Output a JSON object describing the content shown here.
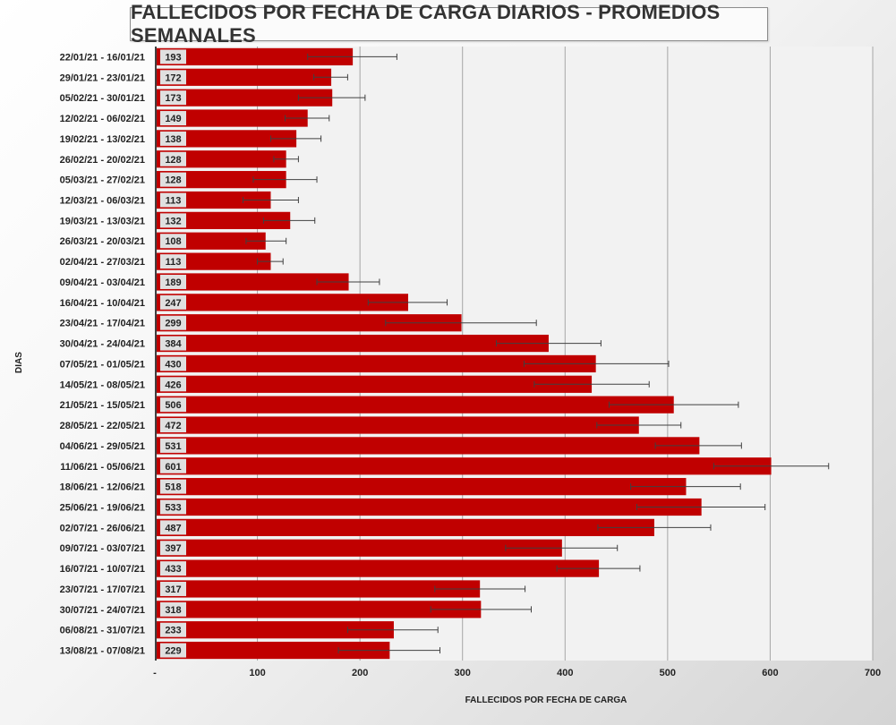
{
  "chart_data": {
    "type": "bar",
    "orientation": "horizontal",
    "title": "FALLECIDOS POR FECHA DE CARGA DIARIOS - PROMEDIOS SEMANALES",
    "xlabel": "FALLECIDOS POR FECHA DE CARGA",
    "ylabel": "DIAS",
    "xlim": [
      0,
      700
    ],
    "x_ticks": [
      "-",
      "100",
      "200",
      "300",
      "400",
      "500",
      "600",
      "700"
    ],
    "grid": "vertical",
    "bar_color": "#C00000",
    "categories": [
      "22/01/21 - 16/01/21",
      "29/01/21 - 23/01/21",
      "05/02/21 - 30/01/21",
      "12/02/21 - 06/02/21",
      "19/02/21 - 13/02/21",
      "26/02/21 - 20/02/21",
      "05/03/21 - 27/02/21",
      "12/03/21 - 06/03/21",
      "19/03/21 - 13/03/21",
      "26/03/21 - 20/03/21",
      "02/04/21 - 27/03/21",
      "09/04/21 - 03/04/21",
      "16/04/21 - 10/04/21",
      "23/04/21 - 17/04/21",
      "30/04/21 - 24/04/21",
      "07/05/21 - 01/05/21",
      "14/05/21 - 08/05/21",
      "21/05/21 - 15/05/21",
      "28/05/21 - 22/05/21",
      "04/06/21 - 29/05/21",
      "11/06/21 - 05/06/21",
      "18/06/21 - 12/06/21",
      "25/06/21 - 19/06/21",
      "02/07/21 - 26/06/21",
      "09/07/21 - 03/07/21",
      "16/07/21 - 10/07/21",
      "23/07/21 - 17/07/21",
      "30/07/21 - 24/07/21",
      "06/08/21 - 31/07/21",
      "13/08/21 - 07/08/21"
    ],
    "values": [
      193,
      172,
      173,
      149,
      138,
      128,
      128,
      113,
      132,
      108,
      113,
      189,
      247,
      299,
      384,
      430,
      426,
      506,
      472,
      531,
      601,
      518,
      533,
      487,
      397,
      433,
      317,
      318,
      233,
      229
    ],
    "value_labels": [
      "193",
      "172",
      "173",
      "149",
      "138",
      "128",
      "128",
      "113",
      "132",
      "108",
      "113",
      "189",
      "247",
      "299",
      "384",
      "430",
      "426",
      "506",
      "472",
      "531",
      "601",
      "518",
      "533",
      "487",
      "397",
      "433",
      "317",
      "318",
      "233",
      "229"
    ],
    "error_low": [
      149,
      155,
      140,
      127,
      113,
      116,
      96,
      86,
      106,
      89,
      100,
      158,
      208,
      225,
      333,
      360,
      370,
      443,
      431,
      488,
      545,
      464,
      470,
      432,
      342,
      392,
      273,
      269,
      188,
      179
    ],
    "error_high": [
      236,
      188,
      205,
      170,
      162,
      140,
      158,
      140,
      156,
      128,
      125,
      219,
      285,
      372,
      435,
      501,
      482,
      569,
      513,
      572,
      657,
      571,
      595,
      542,
      451,
      473,
      361,
      367,
      276,
      278
    ]
  }
}
